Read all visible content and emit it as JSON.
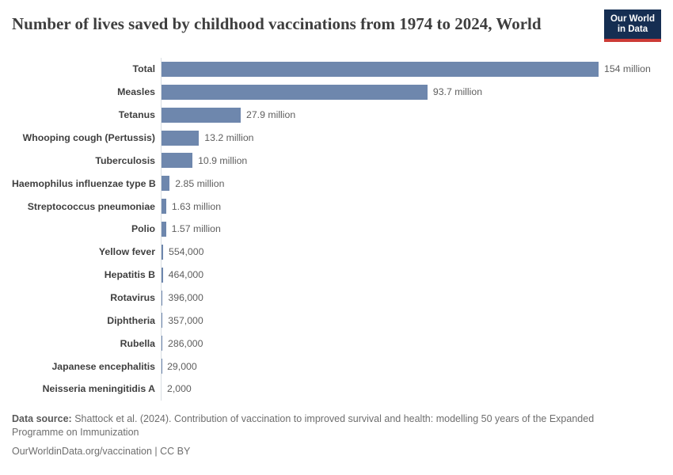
{
  "header": {
    "title": "Number of lives saved by childhood vaccinations from 1974 to 2024, World",
    "logo": {
      "line1": "Our World",
      "line2": "in Data"
    }
  },
  "chart_data": {
    "type": "bar",
    "orientation": "horizontal",
    "title": "Number of lives saved by childhood vaccinations from 1974 to 2024, World",
    "xlabel": "",
    "ylabel": "",
    "unit": "lives saved",
    "xlim_millions": [
      0,
      154
    ],
    "grid": false,
    "legend": false,
    "bar_color": "#6e87ad",
    "categories": [
      "Total",
      "Measles",
      "Tetanus",
      "Whooping cough (Pertussis)",
      "Tuberculosis",
      "Haemophilus influenzae type B",
      "Streptococcus pneumoniae",
      "Polio",
      "Yellow fever",
      "Hepatitis B",
      "Rotavirus",
      "Diphtheria",
      "Rubella",
      "Japanese encephalitis",
      "Neisseria meningitidis A"
    ],
    "values_millions": [
      154,
      93.7,
      27.9,
      13.2,
      10.9,
      2.85,
      1.63,
      1.57,
      0.554,
      0.464,
      0.396,
      0.357,
      0.286,
      0.029,
      0.002
    ],
    "value_labels": [
      "154 million",
      "93.7 million",
      "27.9 million",
      "13.2 million",
      "10.9 million",
      "2.85 million",
      "1.63 million",
      "1.57 million",
      "554,000",
      "464,000",
      "396,000",
      "357,000",
      "286,000",
      "29,000",
      "2,000"
    ]
  },
  "footer": {
    "datasource_label": "Data source:",
    "datasource_text": " Shattock et al. (2024). Contribution of vaccination to improved survival and health: modelling 50 years of the Expanded Programme on Immunization",
    "license": "OurWorldinData.org/vaccination | CC BY"
  },
  "colors": {
    "bar": "#6e87ad",
    "axis_line": "#d9dee3",
    "logo_background": "#152e52",
    "logo_accent": "#cc3b36"
  }
}
